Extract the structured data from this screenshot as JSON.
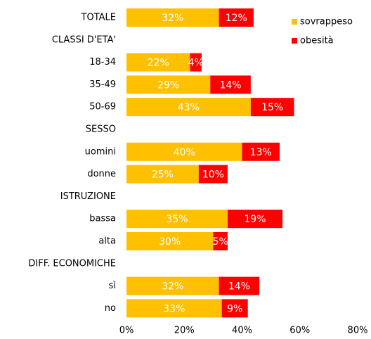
{
  "chart_data": {
    "type": "stacked-bar-horizontal",
    "categories": [
      "TOTALE",
      "CLASSI D'ETA'",
      "18-34",
      "35-49",
      "50-69",
      "SESSO",
      "uomini",
      "donne",
      "ISTRUZIONE",
      "bassa",
      "alta",
      "DIFF. ECONOMICHE",
      "sì",
      "no"
    ],
    "series": [
      {
        "name": "sovrappeso",
        "color": "#ffc000",
        "values": [
          32,
          null,
          22,
          29,
          43,
          null,
          40,
          25,
          null,
          35,
          30,
          null,
          32,
          33
        ],
        "value_labels": [
          "32%",
          null,
          "22%",
          "29%",
          "43%",
          null,
          "40%",
          "25%",
          null,
          "35%",
          "30%",
          null,
          "32%",
          "33%"
        ]
      },
      {
        "name": "obesità",
        "color": "#ff0000",
        "values": [
          12,
          null,
          4,
          14,
          15,
          null,
          13,
          10,
          null,
          19,
          5,
          null,
          14,
          9
        ],
        "value_labels": [
          "12%",
          null,
          "4%",
          "14%",
          "15%",
          null,
          "13%",
          "10%",
          null,
          "19%",
          "5%",
          null,
          "14%",
          "9%"
        ]
      }
    ],
    "xlim": [
      0,
      80
    ],
    "xticks": [
      {
        "value": 0,
        "label": "0%"
      },
      {
        "value": 20,
        "label": "20%"
      },
      {
        "value": 40,
        "label": "40%"
      },
      {
        "value": 60,
        "label": "60%"
      },
      {
        "value": 80,
        "label": "80%"
      }
    ],
    "legend": "upper right"
  }
}
